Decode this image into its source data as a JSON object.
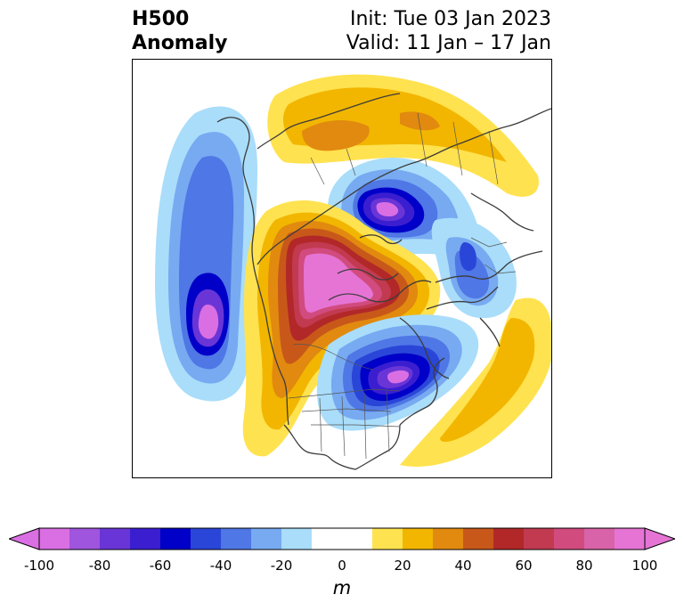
{
  "title": {
    "left_line1": "H500",
    "left_line2": "Anomaly",
    "right_line1": "Init: Tue 03 Jan 2023",
    "right_line2": "Valid: 11 Jan – 17 Jan"
  },
  "colorbar": {
    "unit": "m",
    "min": -100,
    "max": 100,
    "step": 10,
    "tick_labels": [
      "-100",
      "-80",
      "-60",
      "-40",
      "-20",
      "0",
      "20",
      "40",
      "60",
      "80",
      "100"
    ],
    "colors": [
      "#da6fe3",
      "#9f55dd",
      "#6a35d6",
      "#3a1ed0",
      "#0000c8",
      "#2a46d8",
      "#4f77e5",
      "#77aaf1",
      "#a9ddfa",
      "#ffffff",
      "#ffe24f",
      "#f2b600",
      "#e18a0f",
      "#c8581a",
      "#b22828",
      "#c23a50",
      "#d14b7e",
      "#d863a8",
      "#e574d4"
    ],
    "extend": "both"
  },
  "map": {
    "projection": "north-polar-stereographic",
    "variable": "500 hPa geopotential height anomaly",
    "features": [
      {
        "name": "positive-anomaly-over-alaska-and-western-canada",
        "sign": "positive",
        "peak_m": 100
      },
      {
        "name": "negative-anomaly-over-eastern-canada",
        "sign": "negative",
        "peak_m": -90
      },
      {
        "name": "negative-anomaly-over-north-pacific",
        "sign": "negative",
        "peak_m": -95
      },
      {
        "name": "negative-anomaly-over-siberia",
        "sign": "negative",
        "peak_m": -95
      },
      {
        "name": "positive-anomaly-over-northern-asia",
        "sign": "positive",
        "peak_m": 40
      },
      {
        "name": "positive-anomaly-over-north-atlantic",
        "sign": "positive",
        "peak_m": 30
      },
      {
        "name": "negative-anomaly-over-europe",
        "sign": "negative",
        "peak_m": -50
      }
    ]
  }
}
